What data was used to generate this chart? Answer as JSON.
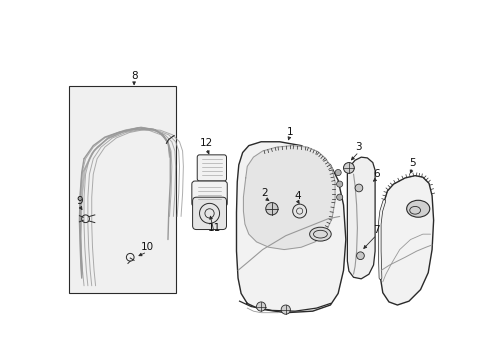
{
  "bg_color": "#ffffff",
  "line_color": "#2a2a2a",
  "gray": "#999999",
  "light_fill": "#f2f2f2",
  "box_fill": "#e8e8e8",
  "label_color": "#111111"
}
